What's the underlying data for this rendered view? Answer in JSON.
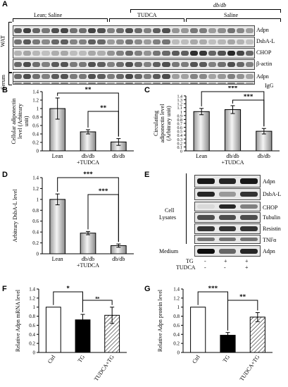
{
  "panels": {
    "A": "A",
    "B": "B",
    "C": "C",
    "D": "D",
    "E": "E",
    "F": "F",
    "G": "G"
  },
  "panelA": {
    "header_dbdb": "db/db",
    "group_labels": [
      "Lean; Saline",
      "TUDCA",
      "Saline"
    ],
    "tissue_labels": [
      "WAT",
      "Serum"
    ],
    "wat_rows": [
      "Adpn",
      "DsbA-L",
      "CHOP",
      "β-actin"
    ],
    "serum_rows": [
      "Adpn",
      "IgG"
    ],
    "lanes_per_group": [
      10,
      7,
      9
    ]
  },
  "panelE": {
    "rows": [
      "Adpn",
      "DsbA-L",
      "CHOP",
      "Tubulin",
      "Resistin",
      "TNFα",
      "Adpn"
    ],
    "section_labels": [
      "Cell",
      "Lysates",
      "Medium"
    ],
    "tg_label": "TG",
    "tudca_label": "TUDCA",
    "tg_signs": [
      "-",
      "+",
      "+"
    ],
    "tudca_signs": [
      "-",
      "-",
      "+"
    ]
  },
  "chart_data": [
    {
      "panel": "B",
      "type": "bar",
      "categories": [
        "Lean",
        "db/db\n+TUDCA",
        "db/db"
      ],
      "values": [
        1.0,
        0.45,
        0.21
      ],
      "errors": [
        0.25,
        0.05,
        0.08
      ],
      "ylabel": "Cellular adiponectin level (Arbitrary unit)",
      "ylim": [
        0,
        1.4
      ],
      "yticks": [
        "0",
        "0.2",
        "0.4",
        "0.6",
        "0.8",
        "1",
        "1.2",
        "1.4"
      ],
      "significance": [
        {
          "from": 0,
          "to": 2,
          "label": "**"
        },
        {
          "from": 1,
          "to": 2,
          "label": "**"
        }
      ]
    },
    {
      "panel": "C",
      "type": "bar",
      "categories": [
        "Lean",
        "db/db\n+TUDCA",
        "db/db"
      ],
      "values": [
        1.0,
        1.05,
        0.5
      ],
      "errors": [
        0.08,
        0.1,
        0.07
      ],
      "ylabel": "Circulating adiponectin level (Arbitrary unit)",
      "ylim": [
        0,
        1.4
      ],
      "yticks": [
        "0",
        "0.1",
        "0.2",
        "0.3",
        "0.4",
        "0.5",
        "0.6",
        "0.7",
        "0.8",
        "0.9",
        "1",
        "1.1",
        "1.2",
        "1.3",
        "1.4"
      ],
      "significance": [
        {
          "from": 0,
          "to": 2,
          "label": "***"
        },
        {
          "from": 1,
          "to": 2,
          "label": "***"
        }
      ]
    },
    {
      "panel": "D",
      "type": "bar",
      "categories": [
        "Lean",
        "db/db\n+TUDCA",
        "db/db"
      ],
      "values": [
        1.0,
        0.38,
        0.15
      ],
      "errors": [
        0.1,
        0.03,
        0.03
      ],
      "ylabel": "Arbitrary DsbA-L level",
      "ylim": [
        0,
        1.4
      ],
      "yticks": [
        "0",
        "0.2",
        "0.4",
        "0.6",
        "0.8",
        "1",
        "1.2",
        "1.4"
      ],
      "significance": [
        {
          "from": 0,
          "to": 2,
          "label": "***"
        },
        {
          "from": 1,
          "to": 2,
          "label": "***"
        }
      ]
    },
    {
      "panel": "F",
      "type": "bar",
      "categories": [
        "Ctrl",
        "TG",
        "TUDCA+TG"
      ],
      "values": [
        1.0,
        0.72,
        0.82
      ],
      "errors": [
        0,
        0.12,
        0.18
      ],
      "ylabel": "Relative Adpn mRNA level",
      "ylim": [
        0,
        1.4
      ],
      "yticks": [
        "0",
        "0.2",
        "0.4",
        "0.6",
        "0.8",
        "1",
        "1.2",
        "1.4"
      ],
      "fills": [
        "white",
        "black",
        "hatch"
      ],
      "significance": [
        {
          "from": 0,
          "to": 1,
          "label": "*"
        },
        {
          "from": 1,
          "to": 2,
          "label": "ns"
        }
      ]
    },
    {
      "panel": "G",
      "type": "bar",
      "categories": [
        "Ctrl",
        "TG",
        "TUDCA+TG"
      ],
      "values": [
        1.0,
        0.38,
        0.78
      ],
      "errors": [
        0,
        0.06,
        0.1
      ],
      "ylabel": "Relative Adpn protein level",
      "ylim": [
        0,
        1.4
      ],
      "yticks": [
        "0",
        "0.2",
        "0.4",
        "0.6",
        "0.8",
        "1",
        "1.2",
        "1.4"
      ],
      "fills": [
        "white",
        "black",
        "hatch"
      ],
      "significance": [
        {
          "from": 0,
          "to": 1,
          "label": "***"
        },
        {
          "from": 1,
          "to": 2,
          "label": "**"
        }
      ]
    }
  ]
}
